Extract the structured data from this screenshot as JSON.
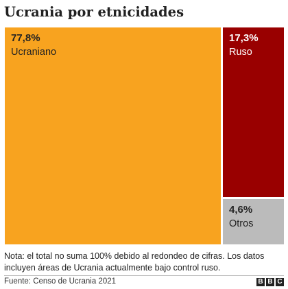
{
  "title": "Ucrania por etnicidades",
  "chart_data": {
    "type": "treemap",
    "title": "Ucrania por etnicidades",
    "items": [
      {
        "name": "Ucraniano",
        "value": 77.8,
        "value_label": "77,8%",
        "color": "#F8A31F",
        "text_color": "#222222"
      },
      {
        "name": "Ruso",
        "value": 17.3,
        "value_label": "17,3%",
        "color": "#990000",
        "text_color": "#ffffff"
      },
      {
        "name": "Otros",
        "value": 4.6,
        "value_label": "4,6%",
        "color": "#BBBBBB",
        "text_color": "#222222"
      }
    ]
  },
  "note": "Nota: el total no suma 100% debido al redondeo de cifras. Los datos incluyen áreas de Ucrania actualmente bajo control ruso.",
  "source": "Fuente: Censo de Ucrania 2021",
  "logo": {
    "letters": [
      "B",
      "B",
      "C"
    ]
  }
}
